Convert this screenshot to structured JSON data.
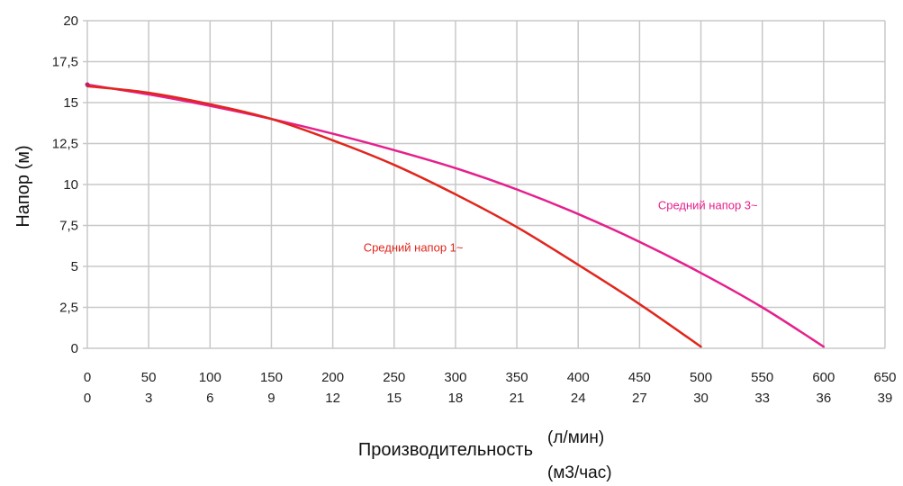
{
  "chart_data": {
    "type": "line",
    "ylabel": "Напор (м)",
    "xlabel": "Производительность",
    "xunit_primary": "(л/мин)",
    "xunit_secondary": "(м3/час)",
    "xlim": [
      0,
      650
    ],
    "ylim": [
      0,
      20
    ],
    "y_ticks": [
      "0",
      "2,5",
      "5",
      "7,5",
      "10",
      "12,5",
      "15",
      "17,5",
      "20"
    ],
    "x_ticks_primary": [
      "0",
      "50",
      "100",
      "150",
      "200",
      "250",
      "300",
      "350",
      "400",
      "450",
      "500",
      "550",
      "600",
      "650"
    ],
    "x_ticks_secondary": [
      "0",
      "3",
      "6",
      "9",
      "12",
      "15",
      "18",
      "21",
      "24",
      "27",
      "30",
      "33",
      "36",
      "39"
    ],
    "grid": true,
    "series": [
      {
        "name": "Средний напор 1~",
        "color": "#e0261d",
        "x": [
          0,
          50,
          100,
          150,
          200,
          250,
          300,
          350,
          400,
          450,
          500
        ],
        "y": [
          16.0,
          15.6,
          14.9,
          14.0,
          12.7,
          11.2,
          9.4,
          7.4,
          5.1,
          2.7,
          0.1
        ]
      },
      {
        "name": "Средний напор 3~",
        "color": "#e5208c",
        "x": [
          0,
          50,
          100,
          150,
          200,
          250,
          300,
          350,
          400,
          450,
          500,
          550,
          600
        ],
        "y": [
          16.1,
          15.5,
          14.8,
          14.0,
          13.1,
          12.1,
          11.0,
          9.7,
          8.2,
          6.5,
          4.6,
          2.5,
          0.1
        ]
      }
    ]
  }
}
